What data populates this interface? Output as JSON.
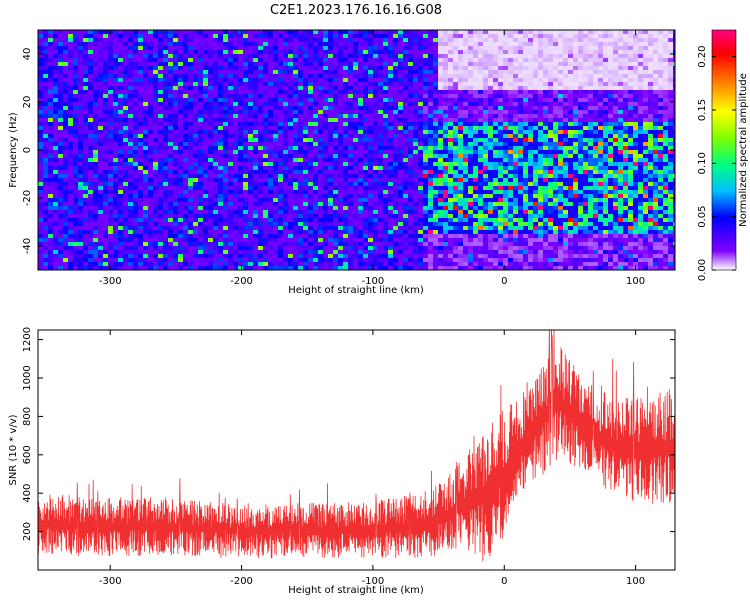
{
  "title": "C2E1.2023.176.16.16.G08",
  "chart_data": [
    {
      "type": "heatmap",
      "title": "C2E1.2023.176.16.16.G08",
      "xlabel": "Height of straight line (km)",
      "ylabel": "Frequency (Hz)",
      "xlim": [
        -355,
        130
      ],
      "ylim": [
        -50,
        50
      ],
      "xticks": [
        -300,
        -200,
        -100,
        0,
        100
      ],
      "xtick_labels": [
        "-300",
        "-200",
        "-100",
        "0",
        "100"
      ],
      "yticks": [
        -40,
        -20,
        0,
        20,
        40
      ],
      "ytick_labels": [
        "-40",
        "-20",
        "0",
        "20",
        "40"
      ],
      "colorbar": {
        "label": "Normalized spectral amplitude",
        "range": [
          0,
          0.225
        ],
        "ticks": [
          0.0,
          0.05,
          0.1,
          0.15,
          0.2
        ],
        "tick_labels": [
          "0.00",
          "0.05",
          "0.10",
          "0.15",
          "0.20"
        ],
        "colormap": [
          "#ffffff",
          "#8000ff",
          "#0000ff",
          "#00c0ff",
          "#00ff80",
          "#80ff00",
          "#ffff00",
          "#ff8000",
          "#ff0000",
          "#ff0080"
        ]
      },
      "regions": [
        {
          "x": [
            -355,
            -60
          ],
          "y": [
            -50,
            50
          ],
          "level": 0.045
        },
        {
          "x": [
            -60,
            130
          ],
          "y": [
            -35,
            12
          ],
          "level": 0.095
        },
        {
          "x": [
            -50,
            130
          ],
          "y": [
            25,
            50
          ],
          "level": 0.005
        },
        {
          "x": [
            -60,
            130
          ],
          "y": [
            -50,
            -35
          ],
          "level": 0.025
        },
        {
          "x": [
            -60,
            130
          ],
          "y": [
            12,
            25
          ],
          "level": 0.03
        }
      ]
    },
    {
      "type": "line",
      "color": "#f03030",
      "xlabel": "Height of straight line (km)",
      "ylabel": "SNR (10 * v/v)",
      "xlim": [
        -355,
        130
      ],
      "ylim": [
        0,
        1250
      ],
      "xticks": [
        -300,
        -200,
        -100,
        0,
        100
      ],
      "xtick_labels": [
        "-300",
        "-200",
        "-100",
        "0",
        "100"
      ],
      "yticks": [
        200,
        400,
        600,
        800,
        1000,
        1200
      ],
      "ytick_labels": [
        "200",
        "400",
        "600",
        "800",
        "1000",
        "1200"
      ],
      "envelope": {
        "x": [
          -355,
          -300,
          -250,
          -200,
          -150,
          -100,
          -70,
          -50,
          -30,
          -15,
          0,
          20,
          40,
          60,
          80,
          100,
          130
        ],
        "low": [
          80,
          70,
          70,
          60,
          60,
          60,
          60,
          70,
          90,
          40,
          150,
          450,
          550,
          530,
          400,
          350,
          330
        ],
        "high": [
          400,
          380,
          380,
          340,
          350,
          360,
          400,
          450,
          600,
          720,
          850,
          1000,
          1200,
          1000,
          920,
          900,
          950
        ]
      }
    }
  ]
}
